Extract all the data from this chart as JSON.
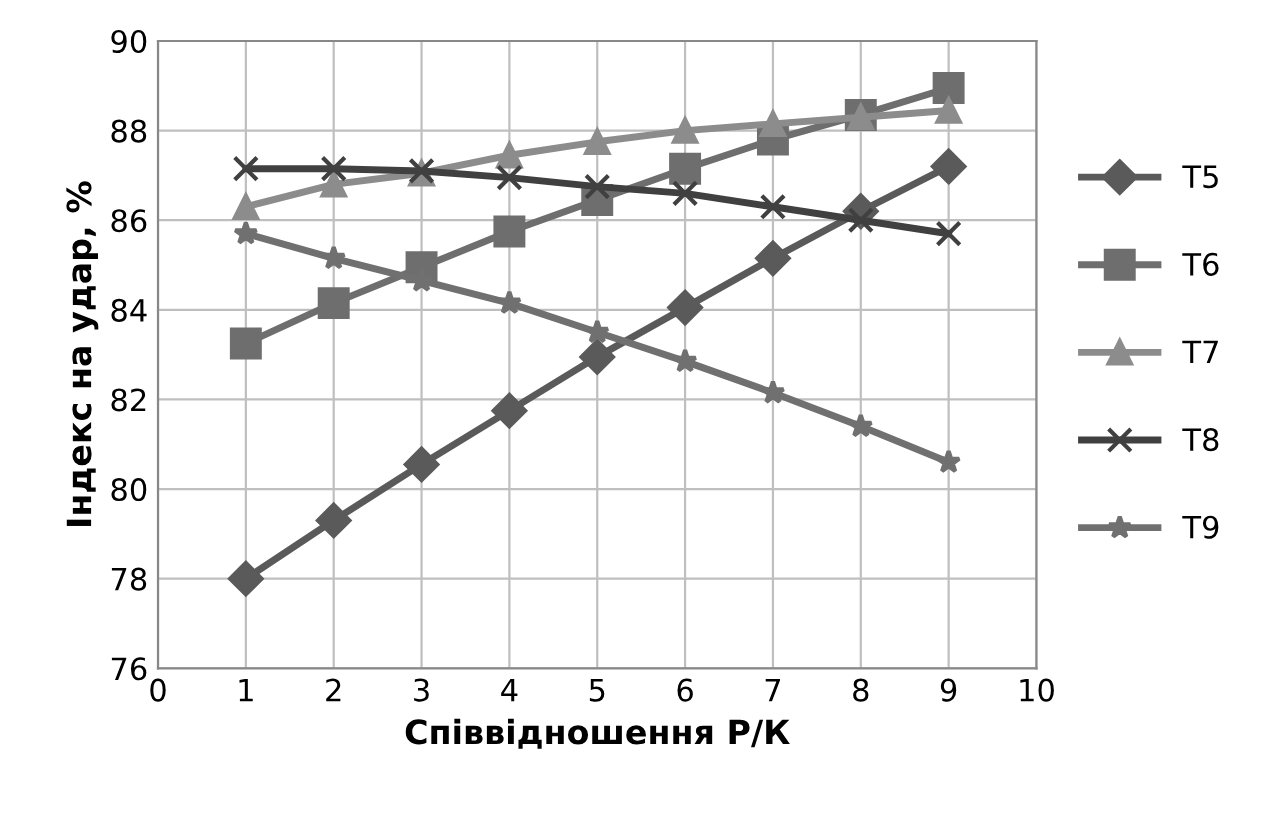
{
  "chart_data": {
    "type": "line",
    "xlabel": "Співвідношення Р/К",
    "ylabel": "Індекс на удар, %",
    "x": [
      1,
      2,
      3,
      4,
      5,
      6,
      7,
      8,
      9
    ],
    "series": [
      {
        "name": "T5",
        "color": "#5a5a5a",
        "marker": "diamond",
        "values": [
          78.0,
          79.3,
          80.55,
          81.75,
          82.95,
          84.05,
          85.15,
          86.2,
          87.2
        ]
      },
      {
        "name": "T6",
        "color": "#6e6e6e",
        "marker": "square",
        "values": [
          83.25,
          84.15,
          84.95,
          85.75,
          86.45,
          87.15,
          87.8,
          88.35,
          88.95
        ]
      },
      {
        "name": "T7",
        "color": "#8c8c8c",
        "marker": "triangle",
        "values": [
          86.3,
          86.8,
          87.05,
          87.45,
          87.75,
          88.0,
          88.15,
          88.3,
          88.45
        ]
      },
      {
        "name": "T8",
        "color": "#404040",
        "marker": "cross",
        "values": [
          87.15,
          87.15,
          87.1,
          86.95,
          86.75,
          86.6,
          86.3,
          86.0,
          85.7
        ]
      },
      {
        "name": "T9",
        "color": "#707070",
        "marker": "star",
        "values": [
          85.7,
          85.15,
          84.65,
          84.15,
          83.5,
          82.85,
          82.15,
          81.4,
          80.6
        ]
      }
    ],
    "xlim": [
      0,
      10
    ],
    "xticks": [
      0,
      1,
      2,
      3,
      4,
      5,
      6,
      7,
      8,
      9,
      10
    ],
    "ylim": [
      76,
      90
    ],
    "yticks": [
      76,
      78,
      80,
      82,
      84,
      86,
      88,
      90
    ],
    "grid": true,
    "legend": "right",
    "line_style": "solid"
  }
}
